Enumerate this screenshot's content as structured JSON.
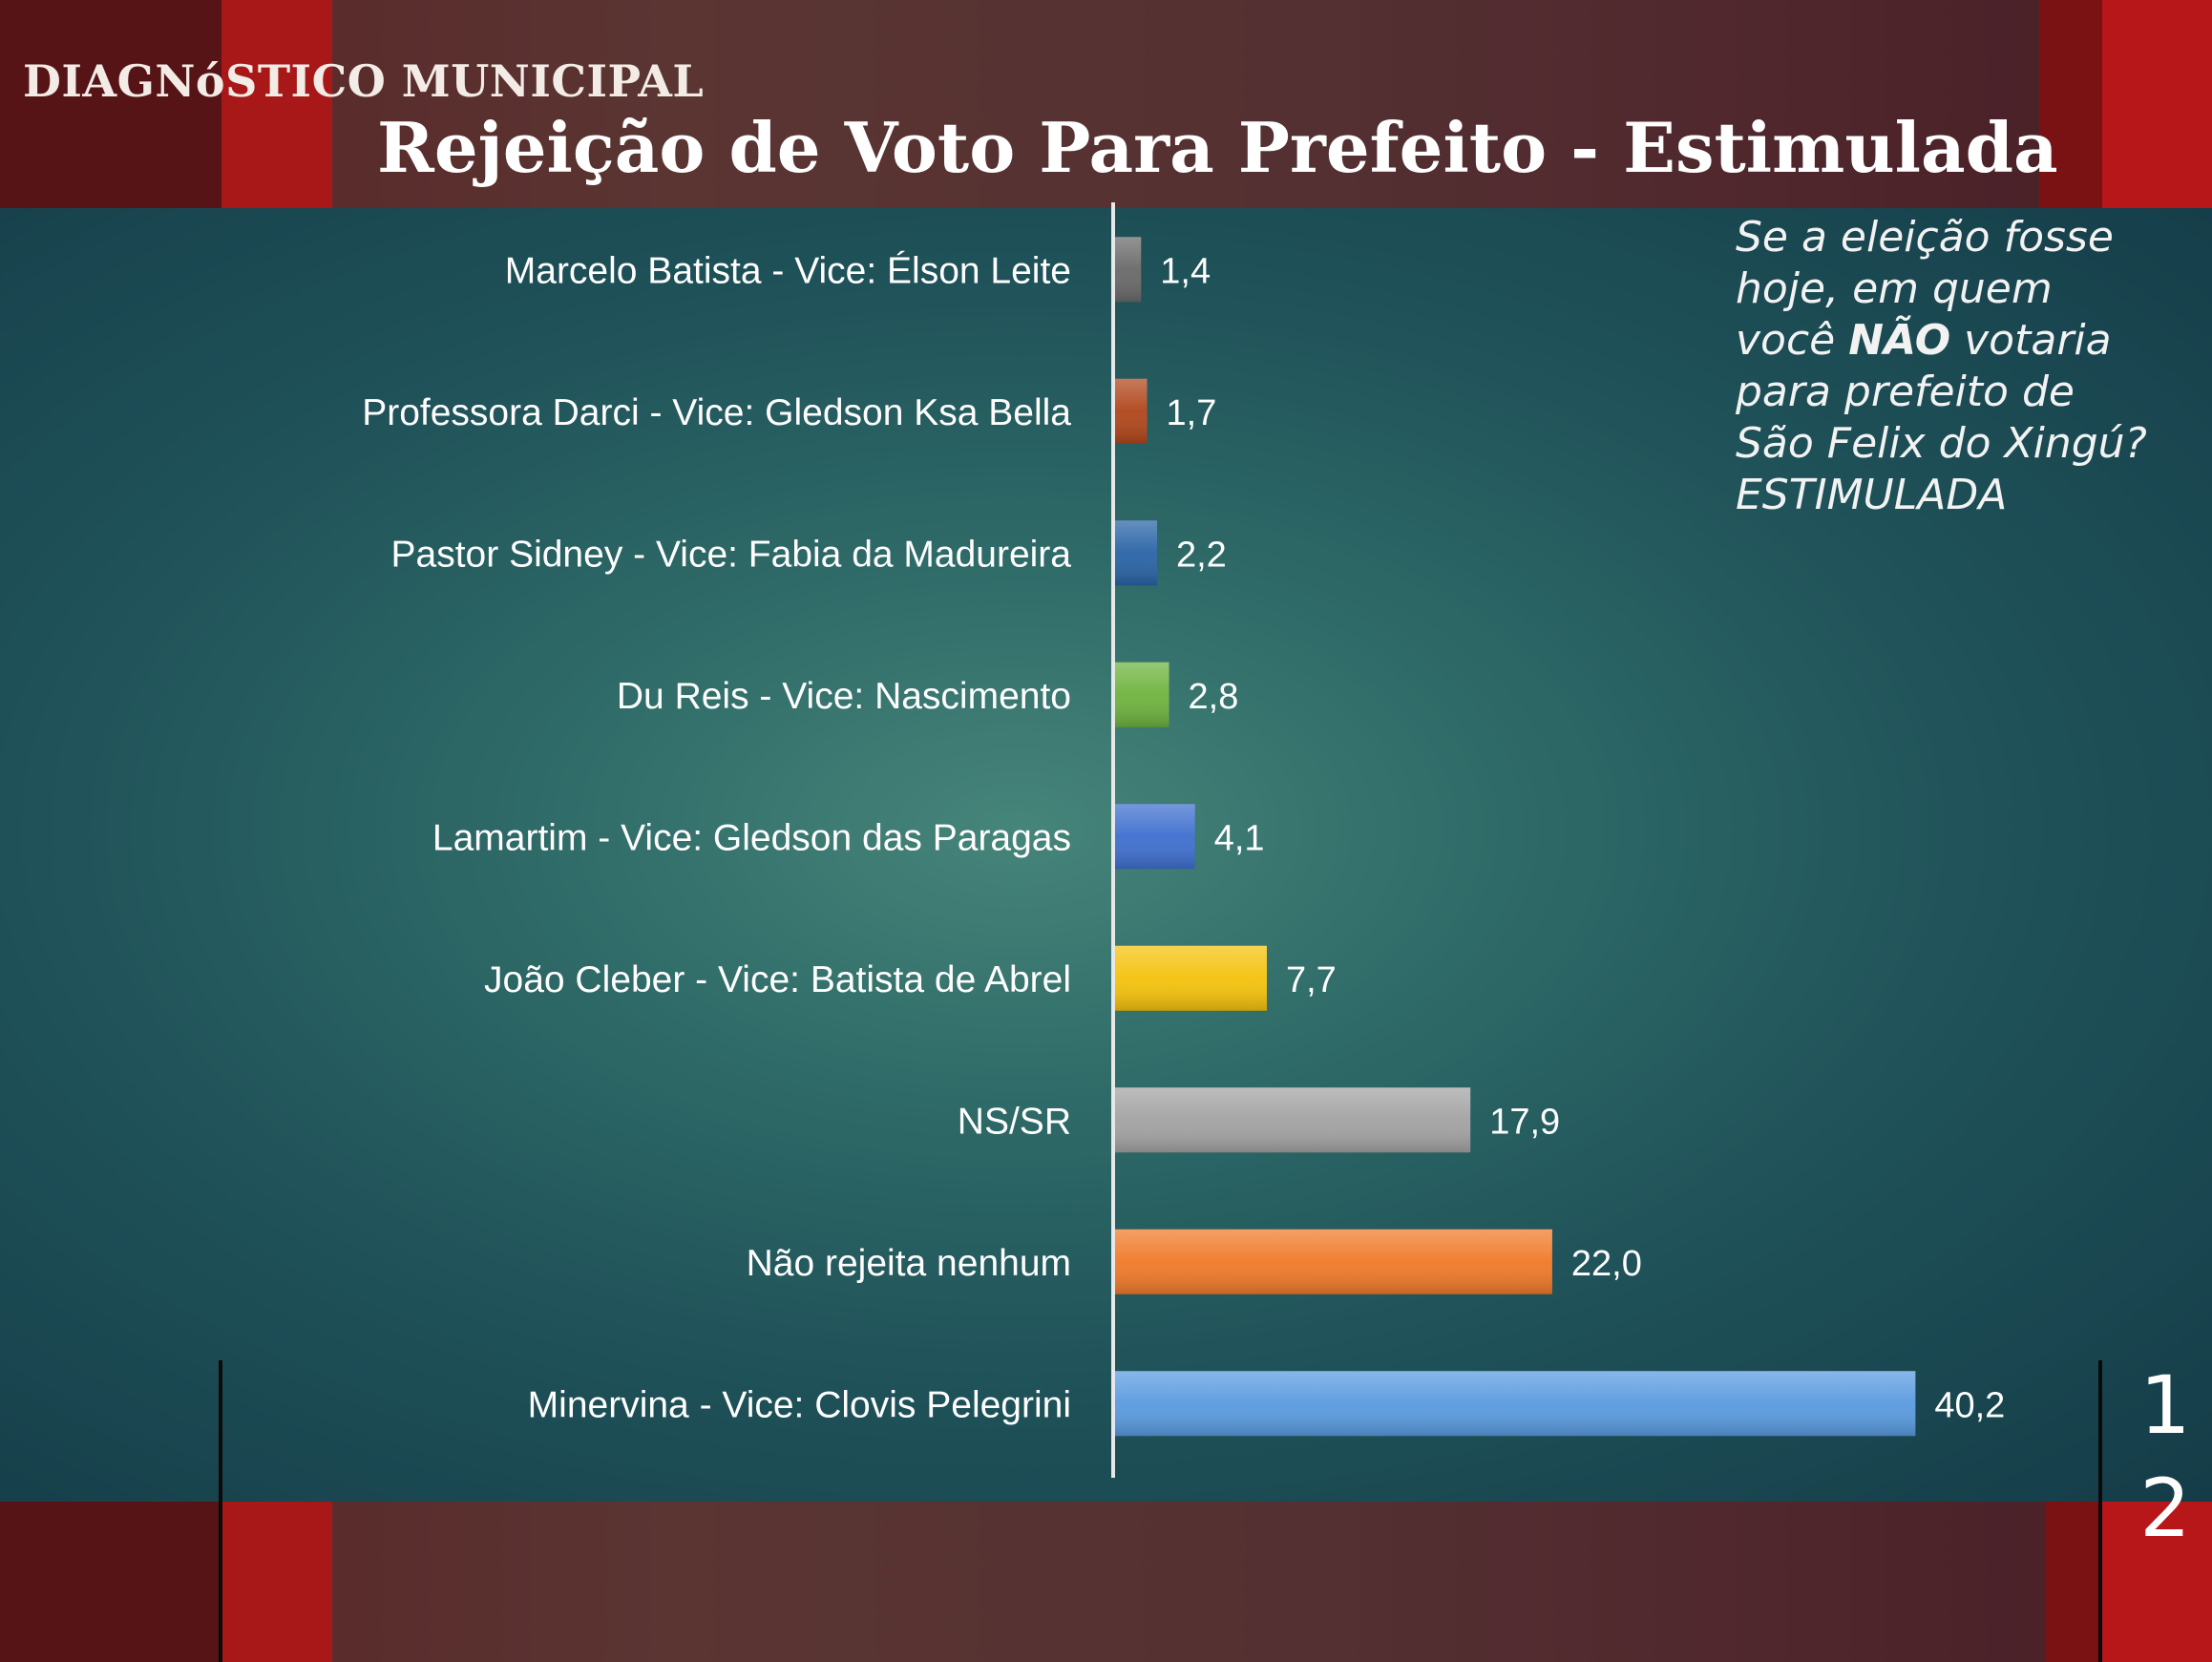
{
  "header": {
    "brand": "DIAGNóSTICO MUNICIPAL",
    "title": "Rejeição de Voto Para Prefeito - Estimulada"
  },
  "question": {
    "line1": "Se a eleição fosse",
    "line2": "hoje, em quem",
    "line3_pre": "você ",
    "line3_bold": "NÃO",
    "line3_post": " votaria",
    "line4": "para prefeito de",
    "line5": "São Felix do Xingú?",
    "line6": "ESTIMULADA"
  },
  "page_number": {
    "digit1": "1",
    "digit2": "2"
  },
  "colors": {
    "band_dark": "#5a2326",
    "band_red": "#a91818",
    "background_center": "#46857a",
    "background_edge": "#143c48"
  },
  "chart_data": {
    "type": "bar",
    "orientation": "horizontal",
    "categories": [
      "Marcelo Batista - Vice: Élson Leite",
      "Professora Darci - Vice: Gledson Ksa Bella",
      "Pastor Sidney - Vice: Fabia da Madureira",
      "Du Reis - Vice: Nascimento",
      "Lamartim - Vice: Gledson das Paragas",
      "João Cleber - Vice: Batista de Abrel",
      "NS/SR",
      "Não rejeita nenhum",
      "Minervina - Vice: Clovis Pelegrini"
    ],
    "values": [
      1.4,
      1.7,
      2.2,
      2.8,
      4.1,
      7.7,
      17.9,
      22.0,
      40.2
    ],
    "value_labels": [
      "1,4",
      "1,7",
      "2,2",
      "2,8",
      "4,1",
      "7,7",
      "17,9",
      "22,0",
      "40,2"
    ],
    "bar_colors": [
      "#6a6a6a",
      "#b0471c",
      "#2a64a6",
      "#6fb33f",
      "#3f70cf",
      "#f4c20d",
      "#a3a3a3",
      "#f07a2a",
      "#5a9be0"
    ],
    "xlim": [
      0,
      42
    ],
    "grid": false,
    "legend": "none"
  }
}
